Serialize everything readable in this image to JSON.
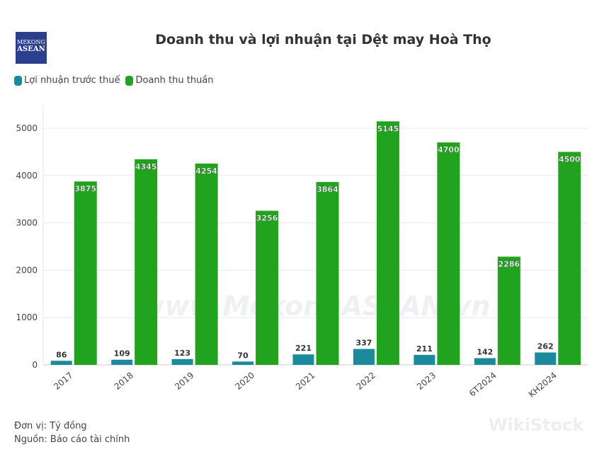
{
  "logo": {
    "line1": "MEKONG",
    "line2": "ASEAN"
  },
  "footer": {
    "unit": "Đơn vị: Tỷ đồng",
    "source": "Nguồn: Báo cáo tài chính"
  },
  "watermarks": {
    "center": "www.MekongASEAN.vn",
    "corner": "WikiStock"
  },
  "chart_data": {
    "type": "bar",
    "title": "Doanh thu và lợi nhuận tại Dệt may Hoà Thọ",
    "categories": [
      "2017",
      "2018",
      "2019",
      "2020",
      "2021",
      "2022",
      "2023",
      "6T2024",
      "KH2024"
    ],
    "series": [
      {
        "name": "Lợi nhuận trước thuế",
        "color": "#1b8a9b",
        "values": [
          86,
          109,
          123,
          70,
          221,
          337,
          211,
          142,
          262
        ]
      },
      {
        "name": "Doanh thu thuần",
        "color": "#22a31f",
        "values": [
          3875,
          4345,
          4254,
          3256,
          3864,
          5145,
          4700,
          2286,
          4500
        ]
      }
    ],
    "yticks": [
      0,
      1000,
      2000,
      3000,
      4000,
      5000
    ],
    "ylim": [
      0,
      5300
    ],
    "grid": true,
    "legend": "top-left"
  }
}
